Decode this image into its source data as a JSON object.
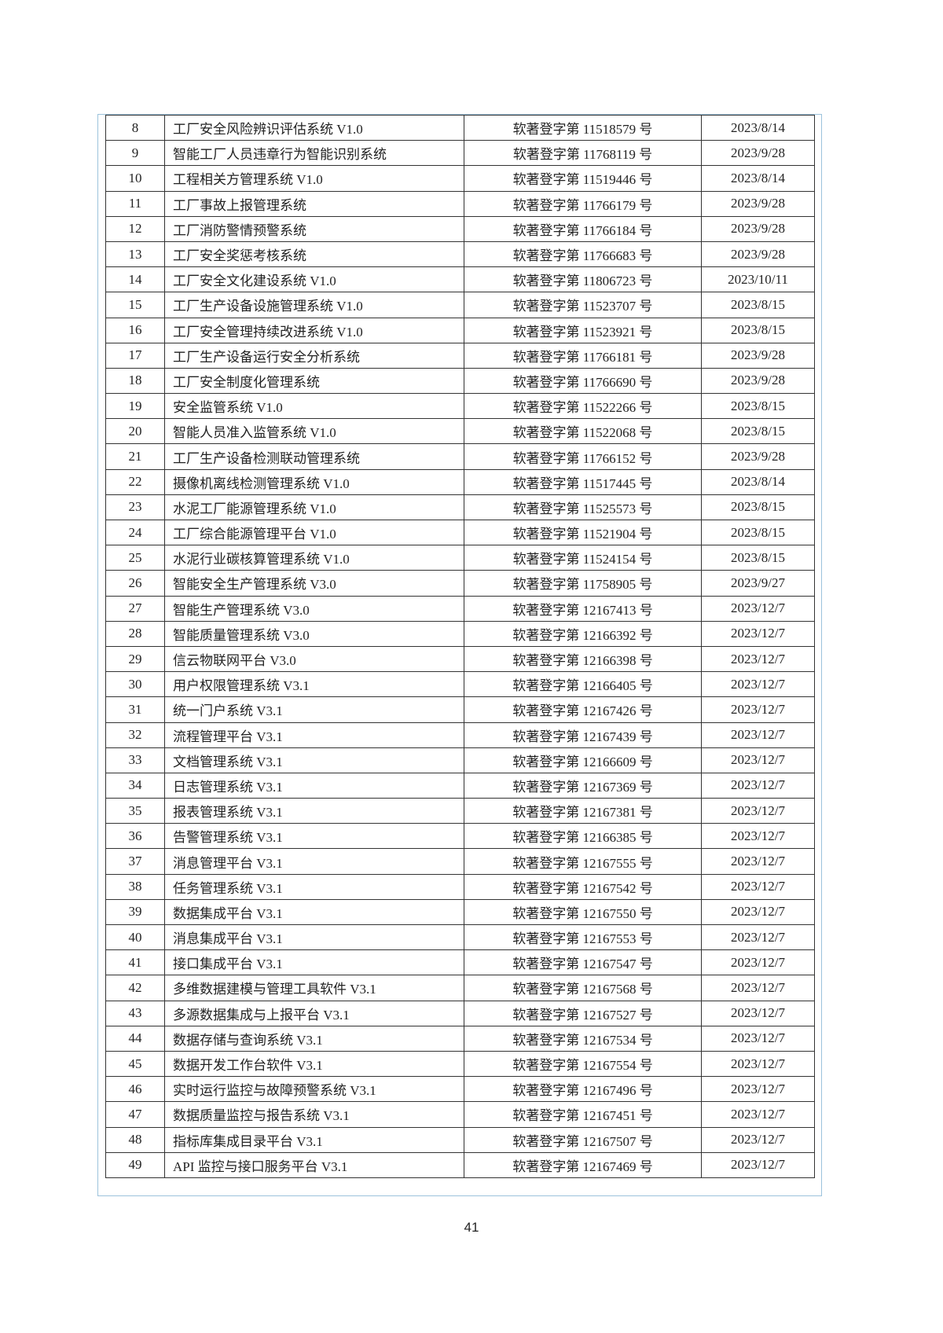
{
  "table": {
    "rows": [
      [
        "8",
        "工厂安全风险辨识评估系统 V1.0",
        "软著登字第 11518579 号",
        "2023/8/14"
      ],
      [
        "9",
        "智能工厂人员违章行为智能识别系统",
        "软著登字第 11768119 号",
        "2023/9/28"
      ],
      [
        "10",
        "工程相关方管理系统 V1.0",
        "软著登字第 11519446 号",
        "2023/8/14"
      ],
      [
        "11",
        "工厂事故上报管理系统",
        "软著登字第 11766179 号",
        "2023/9/28"
      ],
      [
        "12",
        "工厂消防警情预警系统",
        "软著登字第 11766184 号",
        "2023/9/28"
      ],
      [
        "13",
        "工厂安全奖惩考核系统",
        "软著登字第 11766683 号",
        "2023/9/28"
      ],
      [
        "14",
        "工厂安全文化建设系统 V1.0",
        "软著登字第 11806723 号",
        "2023/10/11"
      ],
      [
        "15",
        "工厂生产设备设施管理系统 V1.0",
        "软著登字第 11523707 号",
        "2023/8/15"
      ],
      [
        "16",
        "工厂安全管理持续改进系统 V1.0",
        "软著登字第 11523921 号",
        "2023/8/15"
      ],
      [
        "17",
        "工厂生产设备运行安全分析系统",
        "软著登字第 11766181 号",
        "2023/9/28"
      ],
      [
        "18",
        "工厂安全制度化管理系统",
        "软著登字第 11766690 号",
        "2023/9/28"
      ],
      [
        "19",
        "安全监管系统 V1.0",
        "软著登字第 11522266 号",
        "2023/8/15"
      ],
      [
        "20",
        "智能人员准入监管系统 V1.0",
        "软著登字第 11522068 号",
        "2023/8/15"
      ],
      [
        "21",
        "工厂生产设备检测联动管理系统",
        "软著登字第 11766152 号",
        "2023/9/28"
      ],
      [
        "22",
        "摄像机离线检测管理系统 V1.0",
        "软著登字第 11517445 号",
        "2023/8/14"
      ],
      [
        "23",
        "水泥工厂能源管理系统 V1.0",
        "软著登字第 11525573 号",
        "2023/8/15"
      ],
      [
        "24",
        "工厂综合能源管理平台 V1.0",
        "软著登字第 11521904 号",
        "2023/8/15"
      ],
      [
        "25",
        "水泥行业碳核算管理系统 V1.0",
        "软著登字第 11524154 号",
        "2023/8/15"
      ],
      [
        "26",
        "智能安全生产管理系统 V3.0",
        "软著登字第 11758905 号",
        "2023/9/27"
      ],
      [
        "27",
        "智能生产管理系统  V3.0",
        "软著登字第 12167413 号",
        "2023/12/7"
      ],
      [
        "28",
        "智能质量管理系统  V3.0",
        "软著登字第 12166392 号",
        "2023/12/7"
      ],
      [
        "29",
        "信云物联网平台  V3.0",
        "软著登字第 12166398 号",
        "2023/12/7"
      ],
      [
        "30",
        "用户权限管理系统  V3.1",
        "软著登字第 12166405 号",
        "2023/12/7"
      ],
      [
        "31",
        "统一门户系统  V3.1",
        "软著登字第 12167426 号",
        "2023/12/7"
      ],
      [
        "32",
        "流程管理平台  V3.1",
        "软著登字第 12167439 号",
        "2023/12/7"
      ],
      [
        "33",
        "文档管理系统  V3.1",
        "软著登字第 12166609 号",
        "2023/12/7"
      ],
      [
        "34",
        "日志管理系统  V3.1",
        "软著登字第 12167369 号",
        "2023/12/7"
      ],
      [
        "35",
        "报表管理系统  V3.1",
        "软著登字第 12167381 号",
        "2023/12/7"
      ],
      [
        "36",
        "告警管理系统  V3.1",
        "软著登字第 12166385 号",
        "2023/12/7"
      ],
      [
        "37",
        "消息管理平台  V3.1",
        "软著登字第 12167555 号",
        "2023/12/7"
      ],
      [
        "38",
        "任务管理系统  V3.1",
        "软著登字第 12167542 号",
        "2023/12/7"
      ],
      [
        "39",
        "数据集成平台  V3.1",
        "软著登字第 12167550 号",
        "2023/12/7"
      ],
      [
        "40",
        "消息集成平台  V3.1",
        "软著登字第 12167553 号",
        "2023/12/7"
      ],
      [
        "41",
        "接口集成平台  V3.1",
        "软著登字第 12167547 号",
        "2023/12/7"
      ],
      [
        "42",
        "多维数据建模与管理工具软件  V3.1",
        "软著登字第 12167568 号",
        "2023/12/7"
      ],
      [
        "43",
        "多源数据集成与上报平台  V3.1",
        "软著登字第 12167527 号",
        "2023/12/7"
      ],
      [
        "44",
        "数据存储与查询系统  V3.1",
        "软著登字第 12167534 号",
        "2023/12/7"
      ],
      [
        "45",
        "数据开发工作台软件  V3.1",
        "软著登字第 12167554 号",
        "2023/12/7"
      ],
      [
        "46",
        "实时运行监控与故障预警系统  V3.1",
        "软著登字第 12167496 号",
        "2023/12/7"
      ],
      [
        "47",
        "数据质量监控与报告系统  V3.1",
        "软著登字第 12167451 号",
        "2023/12/7"
      ],
      [
        "48",
        "指标库集成目录平台  V3.1",
        "软著登字第 12167507 号",
        "2023/12/7"
      ],
      [
        "49",
        "API 监控与接口服务平台  V3.1",
        "软著登字第 12167469 号",
        "2023/12/7"
      ]
    ]
  },
  "footer": {
    "page_number": "41"
  }
}
